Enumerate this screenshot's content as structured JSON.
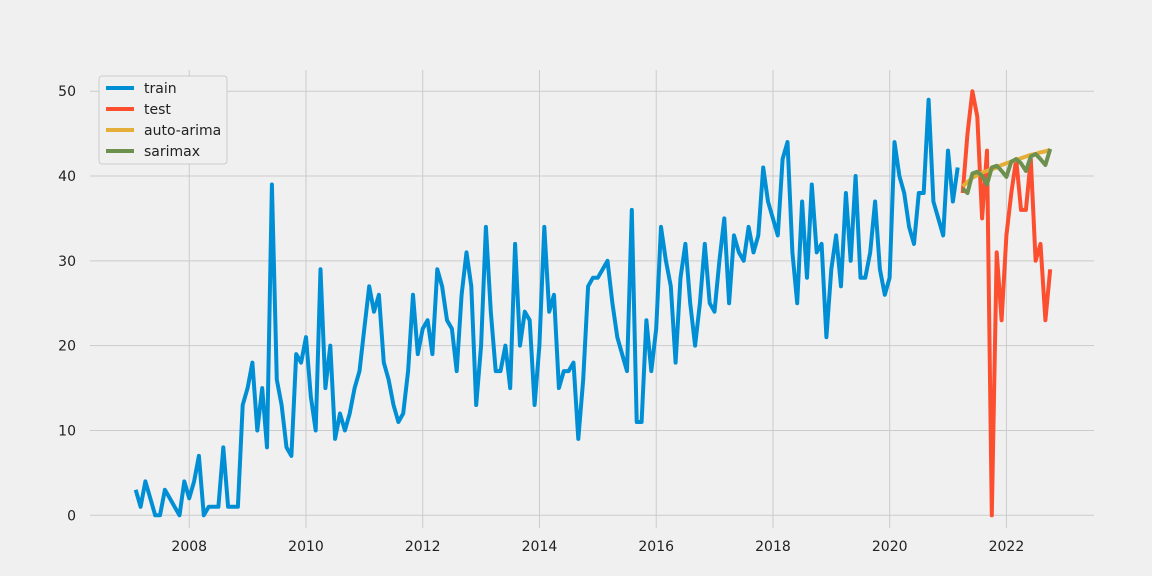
{
  "chart_data": {
    "type": "line",
    "title": "",
    "xlabel": "",
    "ylabel": "",
    "xlim": [
      2006.3,
      2023.5
    ],
    "ylim": [
      -1.5,
      52.5
    ],
    "grid": true,
    "legend_position": "top-left",
    "x_ticks": [
      2008,
      2010,
      2012,
      2014,
      2016,
      2018,
      2020,
      2022
    ],
    "x_tick_labels": [
      "2008",
      "2010",
      "2012",
      "2014",
      "2016",
      "2018",
      "2020",
      "2022"
    ],
    "y_ticks": [
      0,
      10,
      20,
      30,
      40,
      50
    ],
    "y_tick_labels": [
      "0",
      "10",
      "20",
      "30",
      "40",
      "50"
    ],
    "series": [
      {
        "name": "train",
        "color": "#008fd5",
        "start": 2007.083,
        "step": 0.08333,
        "values": [
          3,
          1,
          4,
          2,
          0,
          0,
          3,
          2,
          1,
          0,
          4,
          2,
          4,
          7,
          0,
          1,
          1,
          1,
          8,
          1,
          1,
          1,
          13,
          15,
          18,
          10,
          15,
          8,
          39,
          16,
          13,
          8,
          7,
          19,
          18,
          21,
          14,
          10,
          29,
          15,
          20,
          9,
          12,
          10,
          12,
          15,
          17,
          22,
          27,
          24,
          26,
          18,
          16,
          13,
          11,
          12,
          17,
          26,
          19,
          22,
          23,
          19,
          29,
          27,
          23,
          22,
          17,
          26,
          31,
          27,
          13,
          20,
          34,
          24,
          17,
          17,
          20,
          15,
          32,
          20,
          24,
          23,
          13,
          20,
          34,
          24,
          26,
          15,
          17,
          17,
          18,
          9,
          16,
          27,
          28,
          28,
          29,
          30,
          25,
          21,
          19,
          17,
          36,
          11,
          11,
          23,
          17,
          22,
          34,
          30,
          27,
          18,
          28,
          32,
          25,
          20,
          25,
          32,
          25,
          24,
          30,
          35,
          25,
          33,
          31,
          30,
          34,
          31,
          33,
          41,
          37,
          35,
          33,
          42,
          44,
          31,
          25,
          37,
          28,
          39,
          31,
          32,
          21,
          29,
          33,
          27,
          38,
          30,
          40,
          28,
          28,
          31,
          37,
          29,
          26,
          28,
          44,
          40,
          38,
          34,
          32,
          38,
          38,
          49,
          37,
          35,
          33,
          43,
          37,
          41
        ]
      },
      {
        "name": "test",
        "color": "#fc4f30",
        "start": 2021.25,
        "step": 0.08333,
        "values": [
          38,
          45,
          50,
          47,
          35,
          43,
          0,
          31,
          23,
          33,
          38,
          42,
          36,
          36,
          42,
          30,
          32,
          23,
          29
        ]
      },
      {
        "name": "auto-arima",
        "color": "#e5ae38",
        "start": 2021.25,
        "step": 0.08333,
        "values": [
          38.8,
          39.3,
          39.8,
          40.1,
          40.4,
          40.6,
          40.8,
          41.0,
          41.3,
          41.5,
          41.7,
          41.9,
          42.1,
          42.3,
          42.5,
          42.6,
          42.8,
          42.9,
          43.1
        ]
      },
      {
        "name": "sarimax",
        "color": "#6d904f",
        "start": 2021.25,
        "step": 0.08333,
        "values": [
          38.5,
          38.0,
          40.3,
          40.5,
          40.0,
          39.0,
          41.0,
          41.2,
          40.6,
          39.9,
          41.7,
          42.0,
          41.5,
          40.6,
          42.3,
          42.6,
          42.0,
          41.3,
          43.2
        ]
      }
    ]
  }
}
